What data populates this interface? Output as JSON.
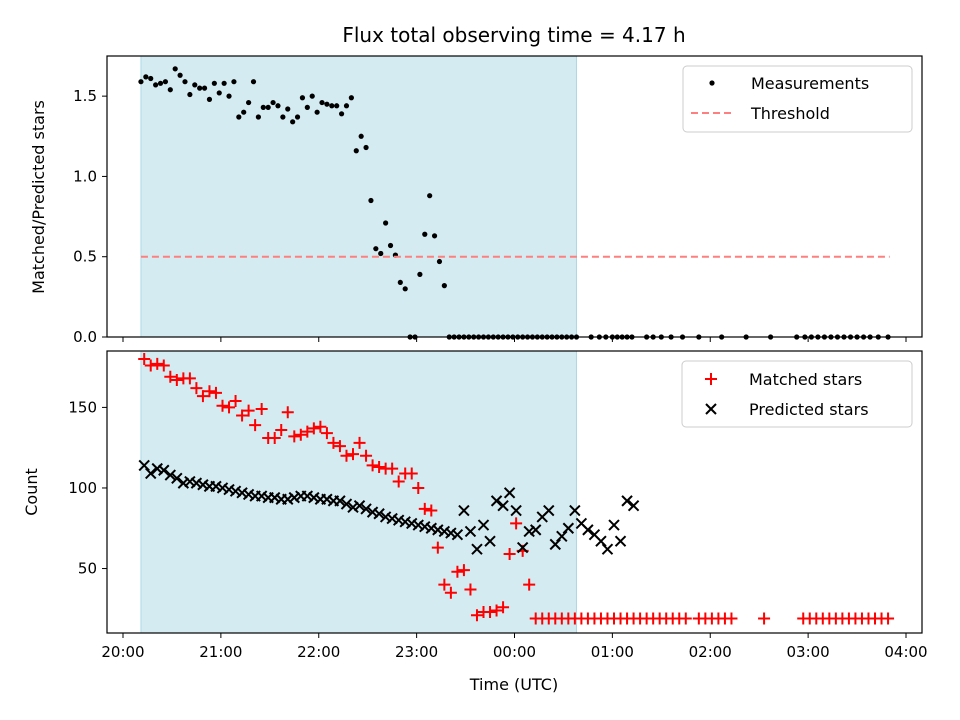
{
  "chart_data": [
    {
      "type": "scatter",
      "title": "Flux total observing time = 4.17 h",
      "ylabel": "Matched/Predicted stars",
      "xlabel": "",
      "xlim": [
        "20:00",
        "04:00"
      ],
      "ylim": [
        0,
        1.75
      ],
      "x_ticks": [
        "20:00",
        "21:00",
        "22:00",
        "23:00",
        "00:00",
        "01:00",
        "02:00",
        "03:00",
        "04:00"
      ],
      "y_ticks": [
        "0.0",
        "0.5",
        "1.0",
        "1.5"
      ],
      "shaded_interval": [
        "20:11",
        "00:38"
      ],
      "shaded_color": "#d4ebf1",
      "legend": {
        "placement": "top-right",
        "entries": [
          "Measurements",
          "Threshold"
        ]
      },
      "series": [
        {
          "name": "Measurements",
          "marker": "dot",
          "color": "#000000",
          "x": [
            "20:11",
            "20:14",
            "20:17",
            "20:20",
            "20:23",
            "20:26",
            "20:29",
            "20:32",
            "20:35",
            "20:38",
            "20:41",
            "20:44",
            "20:47",
            "20:50",
            "20:53",
            "20:56",
            "20:59",
            "21:02",
            "21:05",
            "21:08",
            "21:11",
            "21:14",
            "21:17",
            "21:20",
            "21:23",
            "21:26",
            "21:29",
            "21:32",
            "21:35",
            "21:38",
            "21:41",
            "21:44",
            "21:47",
            "21:50",
            "21:53",
            "21:56",
            "21:59",
            "22:02",
            "22:05",
            "22:08",
            "22:11",
            "22:14",
            "22:17",
            "22:20",
            "22:23",
            "22:26",
            "22:29",
            "22:32",
            "22:35",
            "22:38",
            "22:41",
            "22:44",
            "22:47",
            "22:50",
            "22:53",
            "22:56",
            "22:59",
            "23:02",
            "23:05",
            "23:08",
            "23:11",
            "23:14",
            "23:17",
            "23:20",
            "23:23",
            "23:26",
            "23:29",
            "23:32",
            "23:35",
            "23:38",
            "23:41",
            "23:44",
            "23:47",
            "23:50",
            "23:53",
            "23:56",
            "23:59",
            "00:02",
            "00:05",
            "00:08",
            "00:11",
            "00:14",
            "00:17",
            "00:20",
            "00:23",
            "00:26",
            "00:29",
            "00:32",
            "00:35",
            "00:38",
            "00:47",
            "00:52",
            "00:56",
            "01:00",
            "01:03",
            "01:06",
            "01:09",
            "01:12",
            "01:21",
            "01:25",
            "01:30",
            "01:36",
            "01:43",
            "01:53",
            "02:07",
            "02:22",
            "02:37",
            "02:53",
            "02:58",
            "03:02",
            "03:06",
            "03:10",
            "03:14",
            "03:18",
            "03:22",
            "03:26",
            "03:30",
            "03:34",
            "03:38",
            "03:43",
            "03:49"
          ],
          "y": [
            1.59,
            1.62,
            1.61,
            1.57,
            1.58,
            1.59,
            1.54,
            1.67,
            1.63,
            1.59,
            1.51,
            1.57,
            1.55,
            1.55,
            1.48,
            1.58,
            1.52,
            1.58,
            1.5,
            1.59,
            1.37,
            1.4,
            1.46,
            1.59,
            1.37,
            1.43,
            1.43,
            1.46,
            1.44,
            1.37,
            1.42,
            1.34,
            1.37,
            1.49,
            1.43,
            1.5,
            1.4,
            1.46,
            1.45,
            1.44,
            1.44,
            1.39,
            1.44,
            1.49,
            1.16,
            1.25,
            1.18,
            0.85,
            0.55,
            0.52,
            0.71,
            0.57,
            0.51,
            0.34,
            0.3,
            0,
            0,
            0.39,
            0.64,
            0.88,
            0.63,
            0.47,
            0.32,
            0,
            0,
            0,
            0,
            0,
            0,
            0,
            0,
            0,
            0,
            0,
            0,
            0,
            0,
            0,
            0,
            0,
            0,
            0,
            0,
            0,
            0,
            0,
            0,
            0,
            0,
            0,
            0,
            0,
            0,
            0,
            0,
            0,
            0,
            0,
            0,
            0,
            0,
            0,
            0,
            0,
            0,
            0,
            0,
            0,
            0,
            0,
            0,
            0,
            0,
            0,
            0,
            0,
            0,
            0,
            0,
            0,
            0
          ],
          "note_hidden": ""
        },
        {
          "name": "Threshold",
          "marker": "dashed-line",
          "color": "#ff7f7f",
          "x": [
            "20:11",
            "03:50"
          ],
          "y": [
            0.5,
            0.5
          ]
        }
      ]
    },
    {
      "type": "scatter",
      "title": "",
      "ylabel": "Count",
      "xlabel": "Time (UTC)",
      "xlim": [
        "20:00",
        "04:00"
      ],
      "ylim": [
        10,
        185
      ],
      "x_ticks": [
        "20:00",
        "21:00",
        "22:00",
        "23:00",
        "00:00",
        "01:00",
        "02:00",
        "03:00",
        "04:00"
      ],
      "y_ticks": [
        "50",
        "100",
        "150"
      ],
      "shaded_interval": [
        "20:11",
        "00:38"
      ],
      "shaded_color": "#d4ebf1",
      "legend": {
        "placement": "top-right",
        "entries": [
          "Matched stars",
          "Predicted stars"
        ]
      },
      "series": [
        {
          "name": "Matched stars",
          "marker": "plus",
          "color": "#ff0000",
          "x": [
            "20:13",
            "20:17",
            "20:21",
            "20:25",
            "20:29",
            "20:33",
            "20:37",
            "20:41",
            "20:45",
            "20:49",
            "20:53",
            "20:57",
            "21:01",
            "21:05",
            "21:09",
            "21:13",
            "21:17",
            "21:21",
            "21:25",
            "21:29",
            "21:33",
            "21:37",
            "21:41",
            "21:45",
            "21:49",
            "21:53",
            "21:57",
            "22:01",
            "22:05",
            "22:09",
            "22:13",
            "22:17",
            "22:21",
            "22:25",
            "22:29",
            "22:33",
            "22:37",
            "22:41",
            "22:45",
            "22:49",
            "22:53",
            "22:57",
            "23:01",
            "23:05",
            "23:09",
            "23:13",
            "23:17",
            "23:21",
            "23:25",
            "23:29",
            "23:33",
            "23:37",
            "23:41",
            "23:45",
            "23:49",
            "23:53",
            "23:57",
            "00:01",
            "00:05",
            "00:09",
            "00:13",
            "00:17",
            "00:21",
            "00:25",
            "00:29",
            "00:33",
            "00:37",
            "00:41",
            "00:45",
            "00:49",
            "00:53",
            "00:57",
            "01:01",
            "01:05",
            "01:09",
            "01:13",
            "01:17",
            "01:21",
            "01:25",
            "01:29",
            "01:33",
            "01:37",
            "01:41",
            "01:45",
            "01:53",
            "01:57",
            "02:01",
            "02:05",
            "02:09",
            "02:13",
            "02:33",
            "02:57",
            "03:01",
            "03:05",
            "03:09",
            "03:13",
            "03:17",
            "03:21",
            "03:25",
            "03:29",
            "03:33",
            "03:37",
            "03:41",
            "03:45",
            "03:49"
          ],
          "y": [
            180,
            176,
            177,
            176,
            169,
            167,
            168,
            168,
            162,
            157,
            160,
            159,
            151,
            150,
            154,
            145,
            148,
            139,
            149,
            131,
            131,
            136,
            147,
            132,
            133,
            135,
            137,
            138,
            134,
            128,
            126,
            120,
            121,
            128,
            120,
            114,
            113,
            112,
            112,
            104,
            109,
            109,
            100,
            87,
            86,
            63,
            40,
            35,
            48,
            49,
            37,
            21,
            23,
            23,
            24,
            26,
            59,
            78,
            61,
            40,
            19,
            19,
            19,
            19,
            19,
            19,
            19,
            19,
            19,
            19,
            19,
            19,
            19,
            19,
            19,
            19,
            19,
            19,
            19,
            19,
            19,
            19,
            19,
            19,
            19,
            19,
            19,
            19,
            19,
            19,
            19,
            19,
            19,
            19,
            19,
            19,
            19,
            19,
            19,
            19,
            19,
            19,
            19,
            19,
            19
          ]
        },
        {
          "name": "Predicted stars",
          "marker": "x",
          "color": "#000000",
          "x": [
            "20:13",
            "20:17",
            "20:21",
            "20:25",
            "20:29",
            "20:33",
            "20:37",
            "20:41",
            "20:45",
            "20:49",
            "20:53",
            "20:57",
            "21:01",
            "21:05",
            "21:09",
            "21:13",
            "21:17",
            "21:21",
            "21:25",
            "21:29",
            "21:33",
            "21:37",
            "21:41",
            "21:45",
            "21:49",
            "21:53",
            "21:57",
            "22:01",
            "22:05",
            "22:09",
            "22:13",
            "22:17",
            "22:21",
            "22:25",
            "22:29",
            "22:33",
            "22:37",
            "22:41",
            "22:45",
            "22:49",
            "22:53",
            "22:57",
            "23:01",
            "23:05",
            "23:09",
            "23:13",
            "23:17",
            "23:21",
            "23:25",
            "23:29",
            "23:33",
            "23:37",
            "23:41",
            "23:45",
            "23:49",
            "23:53",
            "23:57",
            "00:01",
            "00:05",
            "00:09",
            "00:13",
            "00:17",
            "00:21",
            "00:25",
            "00:29",
            "00:33",
            "00:37",
            "00:41",
            "00:45",
            "00:49",
            "00:53",
            "00:57",
            "01:01",
            "01:05",
            "01:09",
            "01:13"
          ],
          "y": [
            114,
            109,
            112,
            111,
            108,
            106,
            103,
            104,
            103,
            102,
            101,
            101,
            100,
            99,
            98,
            97,
            96,
            95,
            95,
            94,
            94,
            93,
            93,
            94,
            95,
            95,
            94,
            93,
            93,
            92,
            92,
            90,
            88,
            89,
            87,
            85,
            84,
            82,
            81,
            80,
            79,
            78,
            77,
            76,
            75,
            74,
            73,
            72,
            71,
            86,
            73,
            62,
            77,
            67,
            92,
            89,
            97,
            86,
            63,
            73,
            74,
            82,
            86,
            65,
            70,
            75,
            86,
            78,
            74,
            71,
            67,
            62,
            77,
            67,
            92,
            89
          ],
          "trim": 0
        }
      ]
    }
  ]
}
